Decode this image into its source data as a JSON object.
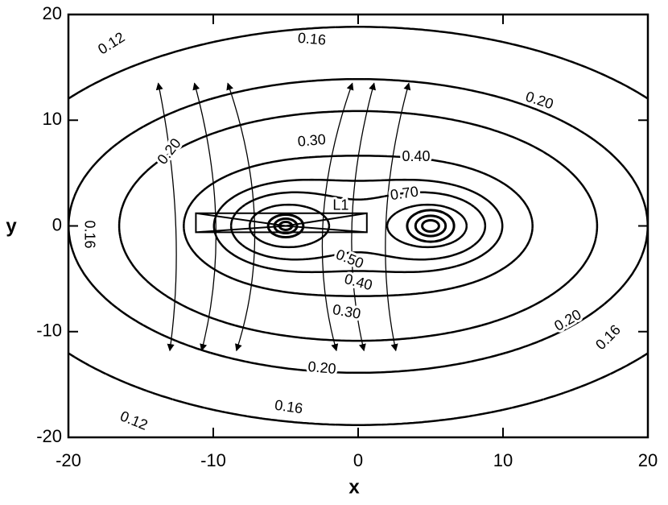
{
  "chart_data": {
    "type": "contour",
    "xlabel": "x",
    "ylabel": "y",
    "xlim": [
      -20,
      20
    ],
    "ylim": [
      -20,
      20
    ],
    "xticks": [
      -20,
      -10,
      0,
      10,
      20
    ],
    "yticks": [
      -20,
      -10,
      0,
      10,
      20
    ],
    "levels": [
      {
        "value": 0.12,
        "label": "0.12"
      },
      {
        "value": 0.16,
        "label": "0.16"
      },
      {
        "value": 0.2,
        "label": "0.20"
      },
      {
        "value": 0.3,
        "label": "0.30"
      },
      {
        "value": 0.4,
        "label": "0.40"
      },
      {
        "value": 0.5,
        "label": "0.50"
      },
      {
        "value": 0.7,
        "label": "0.70"
      }
    ],
    "annotation": "L1",
    "color": "#000000"
  }
}
